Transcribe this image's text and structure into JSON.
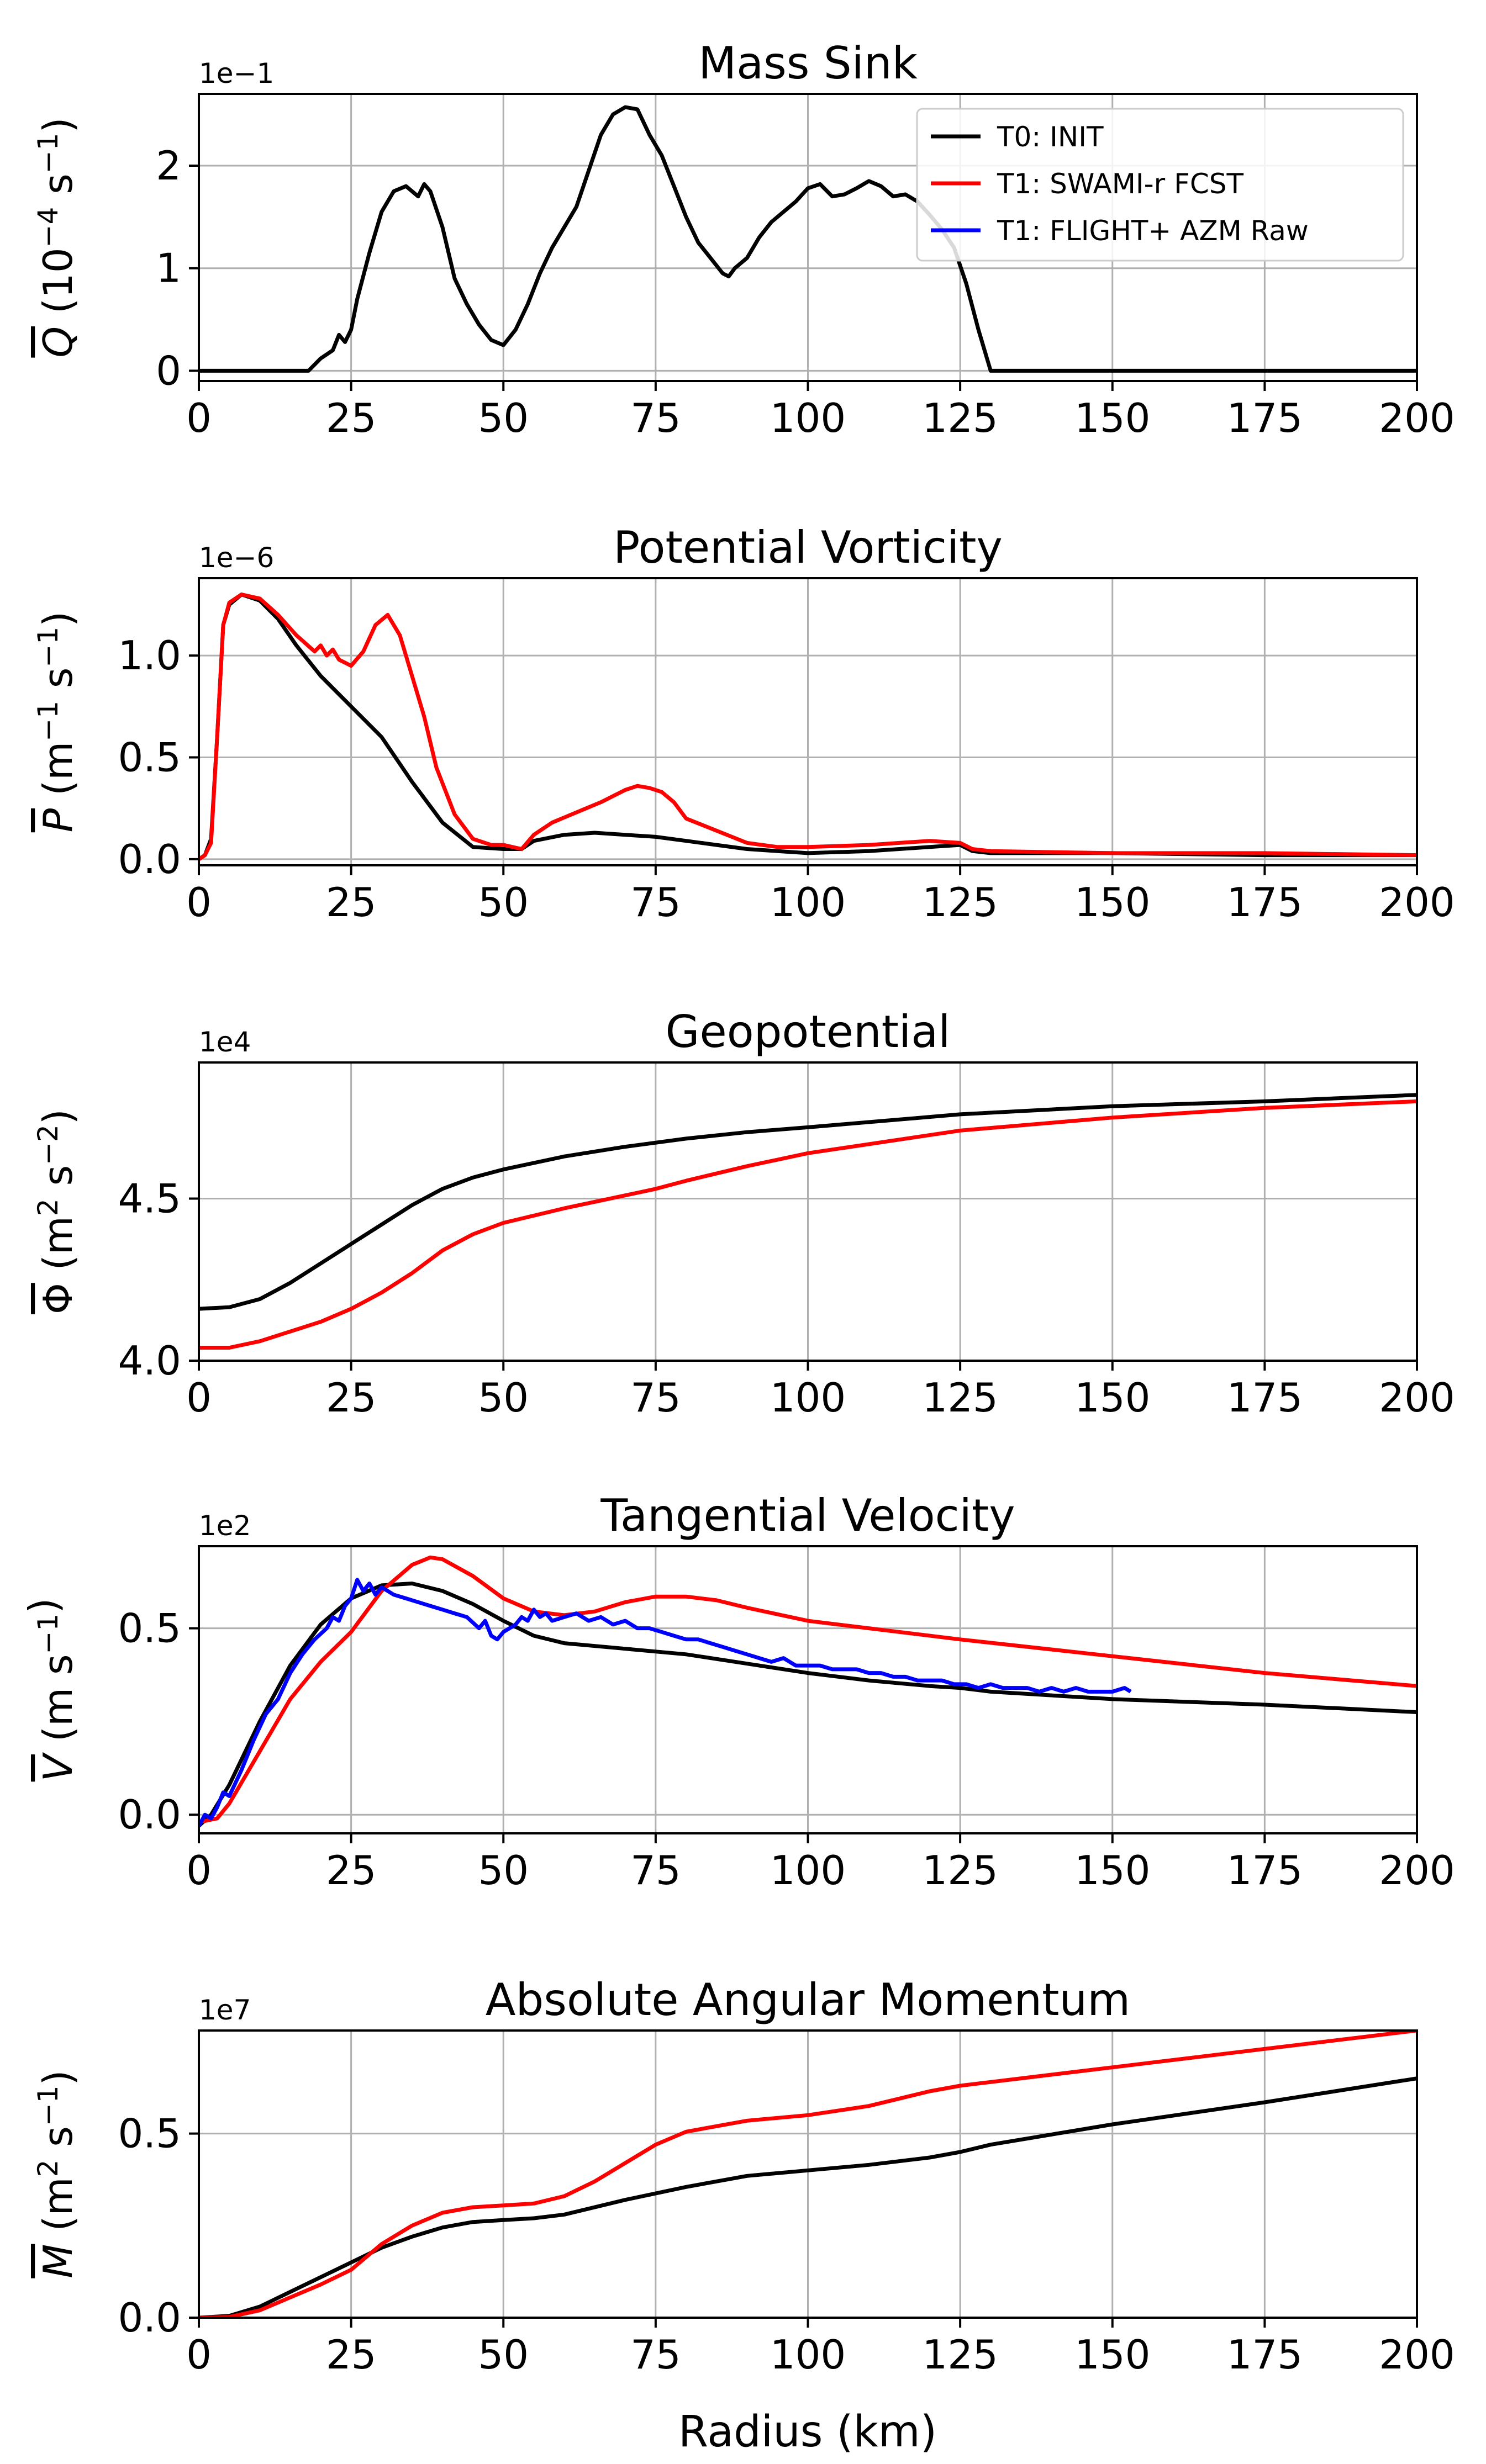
{
  "figure": {
    "xlabel": "Radius (km)",
    "legend": [
      {
        "label": "T0: INIT",
        "color": "#000000"
      },
      {
        "label": "T1: SWAMI-r FCST",
        "color": "#ff0000"
      },
      {
        "label": "T1: FLIGHT+ AZM Raw",
        "color": "#0000ff"
      }
    ]
  },
  "chart_data": [
    {
      "type": "line",
      "title": "Mass Sink",
      "ylabel_symbol": "Q",
      "ylabel_units": "(10",
      "ylabel_sup1": "−4",
      "ylabel_units2": " s",
      "ylabel_sup2": "−1",
      "ylabel_units3": ")",
      "multiplier": "1e−1",
      "xlim": [
        0,
        200
      ],
      "ylim": [
        -0.1,
        2.7
      ],
      "xticks": [
        0,
        25,
        50,
        75,
        100,
        125,
        150,
        175,
        200
      ],
      "xtick_labels": [
        "0",
        "25",
        "50",
        "75",
        "100",
        "125",
        "150",
        "175",
        "200"
      ],
      "yticks": [
        0,
        1,
        2
      ],
      "ytick_labels": [
        "0",
        "1",
        "2"
      ],
      "legend_position": "top-right",
      "series": [
        {
          "name": "T0: INIT",
          "color": "#000000",
          "x": [
            0,
            18,
            20,
            22,
            23,
            24,
            25,
            26,
            28,
            30,
            32,
            34,
            36,
            37,
            38,
            40,
            42,
            44,
            46,
            48,
            50,
            52,
            54,
            56,
            58,
            60,
            62,
            64,
            66,
            68,
            70,
            72,
            74,
            75,
            76,
            78,
            80,
            82,
            84,
            86,
            87,
            88,
            90,
            92,
            94,
            96,
            98,
            100,
            102,
            104,
            106,
            108,
            110,
            112,
            114,
            116,
            118,
            120,
            122,
            124,
            126,
            128,
            130,
            140,
            150,
            175,
            200
          ],
          "y": [
            0,
            0,
            0.12,
            0.2,
            0.35,
            0.28,
            0.4,
            0.7,
            1.15,
            1.55,
            1.75,
            1.8,
            1.7,
            1.82,
            1.75,
            1.4,
            0.9,
            0.65,
            0.45,
            0.3,
            0.25,
            0.4,
            0.65,
            0.95,
            1.2,
            1.4,
            1.6,
            1.95,
            2.3,
            2.5,
            2.57,
            2.55,
            2.3,
            2.2,
            2.1,
            1.8,
            1.5,
            1.25,
            1.1,
            0.95,
            0.92,
            1.0,
            1.1,
            1.3,
            1.45,
            1.55,
            1.65,
            1.78,
            1.82,
            1.7,
            1.72,
            1.78,
            1.85,
            1.8,
            1.7,
            1.72,
            1.65,
            1.52,
            1.38,
            1.2,
            0.85,
            0.4,
            0,
            0,
            0,
            0,
            0
          ]
        }
      ]
    },
    {
      "type": "line",
      "title": "Potential Vorticity",
      "ylabel_symbol": "P",
      "ylabel_units": "(m",
      "ylabel_sup1": "−1",
      "ylabel_units2": " s",
      "ylabel_sup2": "−1",
      "ylabel_units3": ")",
      "multiplier": "1e−6",
      "xlim": [
        0,
        200
      ],
      "ylim": [
        -0.03,
        1.38
      ],
      "xticks": [
        0,
        25,
        50,
        75,
        100,
        125,
        150,
        175,
        200
      ],
      "xtick_labels": [
        "0",
        "25",
        "50",
        "75",
        "100",
        "125",
        "150",
        "175",
        "200"
      ],
      "yticks": [
        0,
        0.5,
        1.0
      ],
      "ytick_labels": [
        "0.0",
        "0.5",
        "1.0"
      ],
      "series": [
        {
          "name": "T0: INIT",
          "color": "#000000",
          "x": [
            0,
            1,
            2,
            3,
            4,
            5,
            7,
            10,
            13,
            16,
            20,
            25,
            30,
            35,
            40,
            45,
            50,
            53,
            55,
            60,
            65,
            70,
            75,
            80,
            85,
            90,
            95,
            100,
            110,
            120,
            125,
            127,
            130,
            150,
            175,
            200
          ],
          "y": [
            0,
            0.02,
            0.1,
            0.6,
            1.15,
            1.25,
            1.3,
            1.27,
            1.18,
            1.05,
            0.9,
            0.75,
            0.6,
            0.38,
            0.18,
            0.06,
            0.05,
            0.05,
            0.09,
            0.12,
            0.13,
            0.12,
            0.11,
            0.09,
            0.07,
            0.05,
            0.04,
            0.03,
            0.04,
            0.06,
            0.07,
            0.04,
            0.03,
            0.03,
            0.02,
            0.02
          ]
        },
        {
          "name": "T1: SWAMI-r FCST",
          "color": "#ff0000",
          "x": [
            0,
            1,
            2,
            3,
            4,
            5,
            7,
            10,
            13,
            16,
            19,
            20,
            21,
            22,
            23,
            25,
            27,
            29,
            31,
            33,
            35,
            37,
            39,
            42,
            45,
            48,
            50,
            53,
            55,
            58,
            62,
            66,
            70,
            72,
            74,
            76,
            78,
            80,
            85,
            90,
            95,
            100,
            110,
            120,
            125,
            127,
            130,
            150,
            175,
            200
          ],
          "y": [
            0,
            0.02,
            0.08,
            0.6,
            1.15,
            1.26,
            1.3,
            1.28,
            1.2,
            1.1,
            1.02,
            1.05,
            1.0,
            1.03,
            0.98,
            0.95,
            1.02,
            1.15,
            1.2,
            1.1,
            0.9,
            0.7,
            0.45,
            0.22,
            0.1,
            0.07,
            0.07,
            0.05,
            0.12,
            0.18,
            0.23,
            0.28,
            0.34,
            0.36,
            0.35,
            0.33,
            0.28,
            0.2,
            0.14,
            0.08,
            0.06,
            0.06,
            0.07,
            0.09,
            0.08,
            0.05,
            0.04,
            0.03,
            0.03,
            0.02
          ]
        }
      ]
    },
    {
      "type": "line",
      "title": "Geopotential",
      "ylabel_symbol": "Φ",
      "ylabel_units": "(m",
      "ylabel_sup1": "2",
      "ylabel_units2": " s",
      "ylabel_sup2": "−2",
      "ylabel_units3": ")",
      "multiplier": "1e4",
      "xlim": [
        0,
        200
      ],
      "ylim": [
        4.0,
        4.92
      ],
      "xticks": [
        0,
        25,
        50,
        75,
        100,
        125,
        150,
        175,
        200
      ],
      "xtick_labels": [
        "0",
        "25",
        "50",
        "75",
        "100",
        "125",
        "150",
        "175",
        "200"
      ],
      "yticks": [
        4.0,
        4.5
      ],
      "ytick_labels": [
        "4.0",
        "4.5"
      ],
      "series": [
        {
          "name": "T0: INIT",
          "color": "#000000",
          "x": [
            0,
            5,
            10,
            15,
            20,
            25,
            30,
            35,
            40,
            45,
            50,
            60,
            70,
            80,
            90,
            100,
            125,
            150,
            175,
            200
          ],
          "y": [
            4.16,
            4.165,
            4.19,
            4.24,
            4.3,
            4.36,
            4.42,
            4.48,
            4.53,
            4.565,
            4.59,
            4.63,
            4.66,
            4.685,
            4.705,
            4.72,
            4.76,
            4.785,
            4.8,
            4.82
          ]
        },
        {
          "name": "T1: SWAMI-r FCST",
          "color": "#ff0000",
          "x": [
            0,
            5,
            10,
            15,
            20,
            25,
            30,
            35,
            40,
            45,
            50,
            60,
            70,
            75,
            80,
            90,
            100,
            125,
            150,
            175,
            200
          ],
          "y": [
            4.04,
            4.04,
            4.06,
            4.09,
            4.12,
            4.16,
            4.21,
            4.27,
            4.34,
            4.39,
            4.425,
            4.47,
            4.51,
            4.53,
            4.555,
            4.6,
            4.64,
            4.71,
            4.75,
            4.78,
            4.8
          ]
        }
      ]
    },
    {
      "type": "line",
      "title": "Tangential Velocity",
      "ylabel_symbol": "V",
      "ylabel_units": "(m s",
      "ylabel_sup1": "−1",
      "ylabel_units2": "",
      "ylabel_sup2": "",
      "ylabel_units3": ")",
      "multiplier": "1e2",
      "xlim": [
        0,
        200
      ],
      "ylim": [
        -0.05,
        0.72
      ],
      "xticks": [
        0,
        25,
        50,
        75,
        100,
        125,
        150,
        175,
        200
      ],
      "xtick_labels": [
        "0",
        "25",
        "50",
        "75",
        "100",
        "125",
        "150",
        "175",
        "200"
      ],
      "yticks": [
        0,
        0.5
      ],
      "ytick_labels": [
        "0.0",
        "0.5"
      ],
      "series": [
        {
          "name": "T0: INIT",
          "color": "#000000",
          "x": [
            0,
            2,
            5,
            10,
            15,
            20,
            25,
            30,
            35,
            40,
            45,
            50,
            55,
            60,
            70,
            80,
            90,
            100,
            110,
            120,
            125,
            130,
            150,
            175,
            200
          ],
          "y": [
            -0.03,
            0,
            0.08,
            0.25,
            0.4,
            0.51,
            0.58,
            0.615,
            0.62,
            0.6,
            0.565,
            0.52,
            0.48,
            0.46,
            0.445,
            0.43,
            0.405,
            0.38,
            0.36,
            0.345,
            0.34,
            0.33,
            0.31,
            0.295,
            0.275
          ]
        },
        {
          "name": "T1: SWAMI-r FCST",
          "color": "#ff0000",
          "x": [
            0,
            3,
            5,
            10,
            15,
            20,
            25,
            30,
            35,
            38,
            40,
            45,
            50,
            55,
            60,
            65,
            70,
            75,
            80,
            85,
            90,
            100,
            110,
            125,
            150,
            175,
            200
          ],
          "y": [
            -0.02,
            -0.01,
            0.03,
            0.17,
            0.31,
            0.41,
            0.49,
            0.6,
            0.67,
            0.69,
            0.685,
            0.64,
            0.58,
            0.545,
            0.535,
            0.545,
            0.57,
            0.585,
            0.585,
            0.575,
            0.555,
            0.52,
            0.5,
            0.47,
            0.425,
            0.38,
            0.345
          ]
        },
        {
          "name": "T1: FLIGHT+ AZM Raw",
          "color": "#0000ff",
          "x": [
            0,
            1,
            2,
            3,
            4,
            5,
            7,
            9,
            11,
            13,
            15,
            17,
            19,
            21,
            22,
            23,
            24,
            25,
            26,
            27,
            28,
            29,
            30,
            31,
            32,
            34,
            36,
            38,
            40,
            42,
            44,
            46,
            47,
            48,
            49,
            50,
            51,
            52,
            53,
            54,
            55,
            56,
            57,
            58,
            60,
            62,
            64,
            66,
            68,
            70,
            72,
            74,
            76,
            78,
            80,
            82,
            84,
            86,
            88,
            90,
            92,
            94,
            96,
            98,
            100,
            102,
            104,
            106,
            108,
            110,
            112,
            114,
            116,
            118,
            120,
            122,
            124,
            126,
            128,
            130,
            132,
            134,
            136,
            138,
            140,
            142,
            144,
            146,
            148,
            150,
            152,
            153
          ],
          "y": [
            -0.03,
            0,
            -0.01,
            0.02,
            0.06,
            0.05,
            0.12,
            0.2,
            0.27,
            0.31,
            0.38,
            0.43,
            0.47,
            0.5,
            0.53,
            0.52,
            0.56,
            0.58,
            0.63,
            0.6,
            0.62,
            0.59,
            0.61,
            0.6,
            0.59,
            0.58,
            0.57,
            0.56,
            0.55,
            0.54,
            0.53,
            0.5,
            0.52,
            0.48,
            0.47,
            0.49,
            0.5,
            0.51,
            0.53,
            0.52,
            0.55,
            0.53,
            0.54,
            0.52,
            0.53,
            0.54,
            0.52,
            0.53,
            0.51,
            0.52,
            0.5,
            0.5,
            0.49,
            0.48,
            0.47,
            0.47,
            0.46,
            0.45,
            0.44,
            0.43,
            0.42,
            0.41,
            0.42,
            0.4,
            0.4,
            0.4,
            0.39,
            0.39,
            0.39,
            0.38,
            0.38,
            0.37,
            0.37,
            0.36,
            0.36,
            0.36,
            0.35,
            0.35,
            0.34,
            0.35,
            0.34,
            0.34,
            0.34,
            0.33,
            0.34,
            0.33,
            0.34,
            0.33,
            0.33,
            0.33,
            0.34,
            0.33
          ]
        }
      ]
    },
    {
      "type": "line",
      "title": "Absolute Angular Momentum",
      "ylabel_symbol": "M",
      "ylabel_units": "(m",
      "ylabel_sup1": "2",
      "ylabel_units2": " s",
      "ylabel_sup2": "−1",
      "ylabel_units3": ")",
      "multiplier": "1e7",
      "xlim": [
        0,
        200
      ],
      "ylim": [
        0,
        0.78
      ],
      "xticks": [
        0,
        25,
        50,
        75,
        100,
        125,
        150,
        175,
        200
      ],
      "xtick_labels": [
        "0",
        "25",
        "50",
        "75",
        "100",
        "125",
        "150",
        "175",
        "200"
      ],
      "yticks": [
        0,
        0.5
      ],
      "ytick_labels": [
        "0.0",
        "0.5"
      ],
      "series": [
        {
          "name": "T0: INIT",
          "color": "#000000",
          "x": [
            0,
            5,
            10,
            15,
            20,
            25,
            30,
            35,
            40,
            45,
            50,
            55,
            60,
            70,
            80,
            90,
            100,
            110,
            120,
            125,
            130,
            150,
            175,
            200
          ],
          "y": [
            0,
            0.005,
            0.03,
            0.07,
            0.11,
            0.15,
            0.19,
            0.22,
            0.245,
            0.26,
            0.265,
            0.27,
            0.28,
            0.32,
            0.355,
            0.385,
            0.4,
            0.415,
            0.435,
            0.45,
            0.47,
            0.525,
            0.585,
            0.65
          ]
        },
        {
          "name": "T1: SWAMI-r FCST",
          "color": "#ff0000",
          "x": [
            0,
            5,
            10,
            15,
            20,
            25,
            30,
            35,
            40,
            45,
            50,
            55,
            60,
            65,
            70,
            75,
            80,
            90,
            100,
            110,
            120,
            125,
            130,
            150,
            175,
            200
          ],
          "y": [
            0,
            0.002,
            0.02,
            0.055,
            0.09,
            0.13,
            0.2,
            0.25,
            0.285,
            0.3,
            0.305,
            0.31,
            0.33,
            0.37,
            0.42,
            0.47,
            0.505,
            0.535,
            0.55,
            0.575,
            0.615,
            0.63,
            0.64,
            0.68,
            0.73,
            0.78
          ]
        }
      ]
    }
  ]
}
